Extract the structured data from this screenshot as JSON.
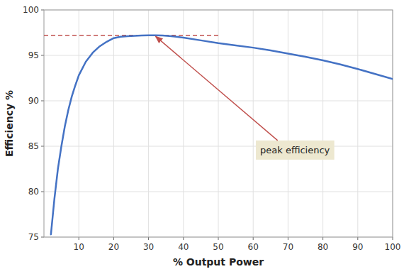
{
  "chart_data": {
    "type": "line",
    "xlabel": "% Output Power",
    "ylabel": "Efficiency %",
    "xlim": [
      0,
      100
    ],
    "ylim": [
      75,
      100
    ],
    "xticks": [
      10,
      20,
      30,
      40,
      50,
      60,
      70,
      80,
      90,
      100
    ],
    "yticks": [
      75,
      80,
      85,
      90,
      95,
      100
    ],
    "grid": true,
    "color": "#4472C4",
    "x": [
      2,
      3,
      4,
      5,
      6,
      7,
      8,
      9,
      10,
      12,
      14,
      16,
      18,
      20,
      22,
      24,
      26,
      28,
      30,
      32,
      34,
      36,
      38,
      40,
      45,
      50,
      55,
      60,
      65,
      70,
      75,
      80,
      85,
      90,
      95,
      100
    ],
    "values": [
      75.3,
      79.2,
      82.5,
      85.0,
      87.2,
      89.0,
      90.5,
      91.7,
      92.8,
      94.3,
      95.3,
      96.0,
      96.5,
      96.9,
      97.05,
      97.1,
      97.15,
      97.18,
      97.2,
      97.2,
      97.18,
      97.12,
      97.05,
      96.95,
      96.65,
      96.35,
      96.1,
      95.85,
      95.55,
      95.2,
      94.85,
      94.45,
      94.0,
      93.5,
      92.95,
      92.4
    ],
    "reference_line": {
      "y": 97.2,
      "x": [
        0,
        50
      ],
      "color": "#C0504D",
      "line_style": "dashed"
    },
    "annotations": [
      {
        "text": "peak efficiency",
        "x": 62,
        "y": 84.5,
        "arrow_x": 32,
        "arrow_y": 97.1,
        "color": "#EDE8D0"
      }
    ]
  }
}
